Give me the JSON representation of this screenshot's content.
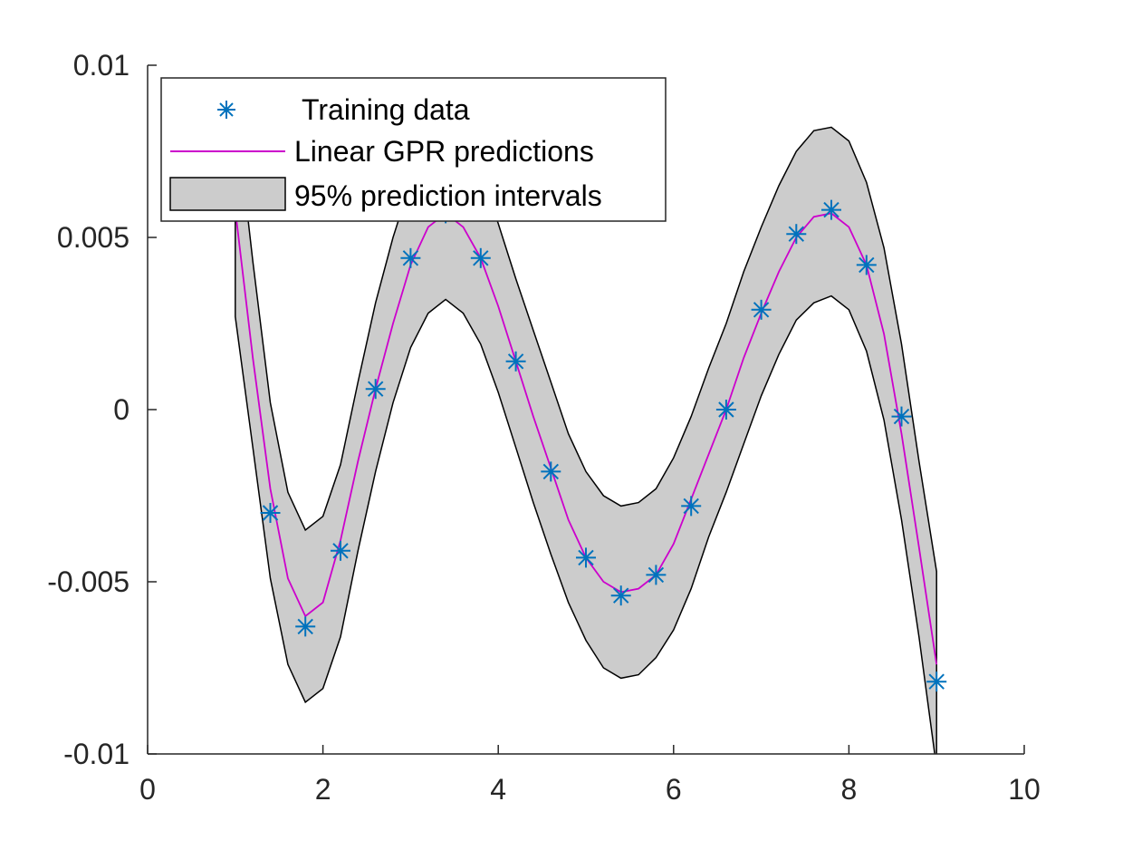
{
  "chart_data": {
    "type": "line",
    "title": "",
    "xlabel": "",
    "ylabel": "",
    "xlim": [
      0,
      10
    ],
    "ylim": [
      -0.01,
      0.01
    ],
    "x_ticks": [
      0,
      2,
      4,
      6,
      8,
      10
    ],
    "x_tick_labels": [
      "0",
      "2",
      "4",
      "6",
      "8",
      "10"
    ],
    "y_ticks": [
      -0.01,
      -0.005,
      0,
      0.005,
      0.01
    ],
    "y_tick_labels": [
      "-0.01",
      "-0.005",
      "0",
      "0.005",
      "0.01"
    ],
    "grid": false,
    "legend_position": "top-left",
    "series": [
      {
        "name": "Training data",
        "kind": "scatter",
        "marker": "asterisk",
        "color": "#0072BD",
        "x": [
          1.0,
          1.4,
          1.8,
          2.2,
          2.6,
          3.0,
          3.4,
          3.8,
          4.2,
          4.6,
          5.0,
          5.4,
          5.8,
          6.2,
          6.6,
          7.0,
          7.4,
          7.8,
          8.2,
          8.6,
          9.0
        ],
        "y": [
          0.0062,
          -0.003,
          -0.0063,
          -0.0041,
          0.0006,
          0.0044,
          0.0057,
          0.0044,
          0.0014,
          -0.0018,
          -0.0043,
          -0.0054,
          -0.0048,
          -0.0028,
          0.0,
          0.0029,
          0.0051,
          0.0058,
          0.0042,
          -0.0002,
          -0.0079
        ]
      },
      {
        "name": "Linear GPR predictions",
        "kind": "line",
        "color": "#CC00CC",
        "x": [
          1.0,
          1.2,
          1.4,
          1.6,
          1.8,
          2.0,
          2.2,
          2.4,
          2.6,
          2.8,
          3.0,
          3.2,
          3.4,
          3.6,
          3.8,
          4.0,
          4.2,
          4.4,
          4.6,
          4.8,
          5.0,
          5.2,
          5.4,
          5.6,
          5.8,
          6.0,
          6.2,
          6.4,
          6.6,
          6.8,
          7.0,
          7.2,
          7.4,
          7.6,
          7.8,
          8.0,
          8.2,
          8.4,
          8.6,
          8.8,
          9.0
        ],
        "y": [
          0.0058,
          0.0015,
          -0.0023,
          -0.0049,
          -0.006,
          -0.0056,
          -0.0038,
          -0.0015,
          0.0006,
          0.0025,
          0.0042,
          0.0053,
          0.0057,
          0.0053,
          0.0044,
          0.003,
          0.0014,
          -0.0002,
          -0.0017,
          -0.0032,
          -0.0043,
          -0.005,
          -0.0053,
          -0.0052,
          -0.0048,
          -0.0039,
          -0.0026,
          -0.0013,
          0.0,
          0.0015,
          0.0028,
          0.004,
          0.005,
          0.0056,
          0.0057,
          0.0053,
          0.0042,
          0.0022,
          -0.0007,
          -0.004,
          -0.0074
        ]
      },
      {
        "name": "95% prediction intervals",
        "kind": "band",
        "fill": "#CCCCCC",
        "edge": "#000000",
        "x": [
          1.0,
          1.2,
          1.4,
          1.6,
          1.8,
          2.0,
          2.2,
          2.4,
          2.6,
          2.8,
          3.0,
          3.2,
          3.4,
          3.6,
          3.8,
          4.0,
          4.2,
          4.4,
          4.6,
          4.8,
          5.0,
          5.2,
          5.4,
          5.6,
          5.8,
          6.0,
          6.2,
          6.4,
          6.6,
          6.8,
          7.0,
          7.2,
          7.4,
          7.6,
          7.8,
          8.0,
          8.2,
          8.4,
          8.6,
          8.8,
          9.0
        ],
        "lower": [
          0.0027,
          -0.0011,
          -0.0049,
          -0.0074,
          -0.0085,
          -0.0081,
          -0.0066,
          -0.0041,
          -0.0018,
          0.0002,
          0.0018,
          0.0028,
          0.0032,
          0.0028,
          0.0019,
          0.0005,
          -0.0011,
          -0.0027,
          -0.0042,
          -0.0056,
          -0.0067,
          -0.0075,
          -0.0078,
          -0.0077,
          -0.0072,
          -0.0064,
          -0.0052,
          -0.0037,
          -0.0024,
          -0.001,
          0.0004,
          0.0016,
          0.0026,
          0.0031,
          0.0033,
          0.0029,
          0.0017,
          -0.0003,
          -0.0032,
          -0.0066,
          -0.0104
        ],
        "upper": [
          0.0088,
          0.0043,
          0.0002,
          -0.0024,
          -0.0035,
          -0.0031,
          -0.0016,
          0.0008,
          0.0031,
          0.005,
          0.0066,
          0.0077,
          0.0082,
          0.0078,
          0.0069,
          0.0054,
          0.0038,
          0.0023,
          0.0008,
          -0.0007,
          -0.0018,
          -0.0025,
          -0.0028,
          -0.0027,
          -0.0023,
          -0.0014,
          -0.0002,
          0.0012,
          0.0025,
          0.004,
          0.0053,
          0.0065,
          0.0075,
          0.0081,
          0.0082,
          0.0078,
          0.0066,
          0.0047,
          0.0019,
          -0.0015,
          -0.0047
        ]
      }
    ]
  }
}
